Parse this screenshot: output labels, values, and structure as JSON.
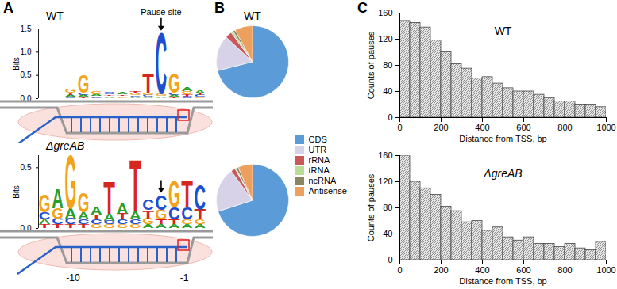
{
  "panel_labels": [
    "A",
    "B",
    "C"
  ],
  "chart_data": [
    {
      "type": "logo",
      "title": "WT",
      "annotation": "Pause site",
      "ylabel": "Bits",
      "xlim": [
        0.5,
        13.5
      ],
      "ylim": [
        0,
        1.5
      ],
      "yticks": [
        {
          "value": 0,
          "label": "0.0"
        },
        {
          "value": 0.5,
          "label": "0.5"
        },
        {
          "value": 1,
          "label": "1.0"
        },
        {
          "value": 1.5,
          "label": "1.5"
        }
      ],
      "tick_labels": "y",
      "pause_x": 10,
      "letter_colors": {
        "A": "#2a9d2a",
        "C": "#1f4fcf",
        "G": "#f2a31b",
        "T": "#d7261e"
      },
      "columns": [
        {
          "x": 1,
          "letters": []
        },
        {
          "x": 2,
          "letters": []
        },
        {
          "x": 3,
          "letters": [
            {
              "letter": "C",
              "bits": 0.03
            },
            {
              "letter": "A",
              "bits": 0.04
            },
            {
              "letter": "T",
              "bits": 0.05
            },
            {
              "letter": "G",
              "bits": 0.08
            }
          ]
        },
        {
          "x": 4,
          "letters": [
            {
              "letter": "T",
              "bits": 0.03
            },
            {
              "letter": "A",
              "bits": 0.04
            },
            {
              "letter": "C",
              "bits": 0.05
            },
            {
              "letter": "G",
              "bits": 0.38
            }
          ]
        },
        {
          "x": 5,
          "letters": [
            {
              "letter": "C",
              "bits": 0.02
            },
            {
              "letter": "T",
              "bits": 0.03
            },
            {
              "letter": "A",
              "bits": 0.04
            },
            {
              "letter": "G",
              "bits": 0.06
            }
          ]
        },
        {
          "x": 6,
          "letters": [
            {
              "letter": "A",
              "bits": 0.02
            },
            {
              "letter": "G",
              "bits": 0.03
            },
            {
              "letter": "T",
              "bits": 0.03
            },
            {
              "letter": "C",
              "bits": 0.04
            }
          ]
        },
        {
          "x": 7,
          "letters": [
            {
              "letter": "G",
              "bits": 0.02
            },
            {
              "letter": "C",
              "bits": 0.03
            },
            {
              "letter": "T",
              "bits": 0.03
            },
            {
              "letter": "A",
              "bits": 0.04
            }
          ]
        },
        {
          "x": 8,
          "letters": [
            {
              "letter": "A",
              "bits": 0.03
            },
            {
              "letter": "C",
              "bits": 0.03
            },
            {
              "letter": "G",
              "bits": 0.04
            },
            {
              "letter": "T",
              "bits": 0.05
            }
          ]
        },
        {
          "x": 9,
          "letters": [
            {
              "letter": "A",
              "bits": 0.03
            },
            {
              "letter": "C",
              "bits": 0.04
            },
            {
              "letter": "G",
              "bits": 0.05
            },
            {
              "letter": "T",
              "bits": 0.42
            }
          ]
        },
        {
          "x": 10,
          "letters": [
            {
              "letter": "A",
              "bits": 0.02
            },
            {
              "letter": "T",
              "bits": 0.03
            },
            {
              "letter": "G",
              "bits": 0.05
            },
            {
              "letter": "C",
              "bits": 1.3
            }
          ]
        },
        {
          "x": 11,
          "letters": [
            {
              "letter": "T",
              "bits": 0.03
            },
            {
              "letter": "A",
              "bits": 0.04
            },
            {
              "letter": "C",
              "bits": 0.05
            },
            {
              "letter": "G",
              "bits": 0.42
            }
          ]
        },
        {
          "x": 12,
          "letters": [
            {
              "letter": "C",
              "bits": 0.04
            },
            {
              "letter": "T",
              "bits": 0.05
            },
            {
              "letter": "G",
              "bits": 0.06
            },
            {
              "letter": "A",
              "bits": 0.08
            }
          ]
        },
        {
          "x": 13,
          "letters": [
            {
              "letter": "G",
              "bits": 0.03
            },
            {
              "letter": "C",
              "bits": 0.04
            },
            {
              "letter": "T",
              "bits": 0.04
            },
            {
              "letter": "A",
              "bits": 0.06
            }
          ]
        }
      ]
    },
    {
      "type": "logo",
      "title": "ΔgreAB",
      "ylabel": "Bits",
      "xlim": [
        0.5,
        13.5
      ],
      "ylim": [
        0,
        0.6
      ],
      "yticks": [
        {
          "value": 0,
          "label": "0.0"
        },
        {
          "value": 0.5,
          "label": "0.5"
        }
      ],
      "tick_labels": "y",
      "pause_x": 10,
      "diagram_labels": [
        "-10",
        "-1"
      ],
      "letter_colors": {
        "A": "#2a9d2a",
        "C": "#1f4fcf",
        "G": "#f2a31b",
        "T": "#d7261e"
      },
      "columns": [
        {
          "x": 1,
          "letters": [
            {
              "letter": "T",
              "bits": 0.03
            },
            {
              "letter": "A",
              "bits": 0.04
            },
            {
              "letter": "C",
              "bits": 0.06
            },
            {
              "letter": "G",
              "bits": 0.14
            }
          ]
        },
        {
          "x": 2,
          "letters": [
            {
              "letter": "T",
              "bits": 0.03
            },
            {
              "letter": "C",
              "bits": 0.05
            },
            {
              "letter": "G",
              "bits": 0.08
            },
            {
              "letter": "A",
              "bits": 0.16
            }
          ]
        },
        {
          "x": 3,
          "letters": [
            {
              "letter": "T",
              "bits": 0.03
            },
            {
              "letter": "C",
              "bits": 0.05
            },
            {
              "letter": "A",
              "bits": 0.08
            },
            {
              "letter": "G",
              "bits": 0.44
            }
          ]
        },
        {
          "x": 4,
          "letters": [
            {
              "letter": "T",
              "bits": 0.03
            },
            {
              "letter": "C",
              "bits": 0.04
            },
            {
              "letter": "A",
              "bits": 0.06
            },
            {
              "letter": "G",
              "bits": 0.16
            }
          ]
        },
        {
          "x": 5,
          "letters": [
            {
              "letter": "G",
              "bits": 0.03
            },
            {
              "letter": "C",
              "bits": 0.04
            },
            {
              "letter": "T",
              "bits": 0.04
            },
            {
              "letter": "A",
              "bits": 0.07
            }
          ]
        },
        {
          "x": 6,
          "letters": [
            {
              "letter": "G",
              "bits": 0.03
            },
            {
              "letter": "C",
              "bits": 0.03
            },
            {
              "letter": "A",
              "bits": 0.06
            },
            {
              "letter": "T",
              "bits": 0.26
            }
          ]
        },
        {
          "x": 7,
          "letters": [
            {
              "letter": "G",
              "bits": 0.03
            },
            {
              "letter": "C",
              "bits": 0.04
            },
            {
              "letter": "T",
              "bits": 0.05
            },
            {
              "letter": "A",
              "bits": 0.08
            }
          ]
        },
        {
          "x": 8,
          "letters": [
            {
              "letter": "G",
              "bits": 0.03
            },
            {
              "letter": "C",
              "bits": 0.04
            },
            {
              "letter": "A",
              "bits": 0.07
            },
            {
              "letter": "T",
              "bits": 0.42
            }
          ]
        },
        {
          "x": 9,
          "letters": [
            {
              "letter": "A",
              "bits": 0.03
            },
            {
              "letter": "G",
              "bits": 0.05
            },
            {
              "letter": "T",
              "bits": 0.07
            },
            {
              "letter": "C",
              "bits": 0.08
            }
          ]
        },
        {
          "x": 10,
          "letters": [
            {
              "letter": "A",
              "bits": 0.03
            },
            {
              "letter": "T",
              "bits": 0.04
            },
            {
              "letter": "G",
              "bits": 0.08
            },
            {
              "letter": "C",
              "bits": 0.12
            }
          ]
        },
        {
          "x": 11,
          "letters": [
            {
              "letter": "A",
              "bits": 0.03
            },
            {
              "letter": "T",
              "bits": 0.04
            },
            {
              "letter": "C",
              "bits": 0.1
            },
            {
              "letter": "G",
              "bits": 0.22
            }
          ]
        },
        {
          "x": 12,
          "letters": [
            {
              "letter": "A",
              "bits": 0.03
            },
            {
              "letter": "G",
              "bits": 0.04
            },
            {
              "letter": "C",
              "bits": 0.1
            },
            {
              "letter": "T",
              "bits": 0.22
            }
          ]
        },
        {
          "x": 13,
          "letters": [
            {
              "letter": "A",
              "bits": 0.03
            },
            {
              "letter": "G",
              "bits": 0.04
            },
            {
              "letter": "T",
              "bits": 0.08
            },
            {
              "letter": "C",
              "bits": 0.2
            }
          ]
        }
      ]
    },
    {
      "type": "pie",
      "title": "WT",
      "categories": [
        "CDS",
        "UTR",
        "rRNA",
        "tRNA",
        "ncRNA",
        "Antisense"
      ],
      "values": [
        71,
        16,
        3,
        1,
        1,
        8
      ],
      "colors": [
        "#5a9bd8",
        "#d8d2e8",
        "#c8585a",
        "#b9dc97",
        "#8a8662",
        "#eda05e"
      ],
      "legend": "right"
    },
    {
      "type": "pie",
      "categories": [
        "CDS",
        "UTR",
        "rRNA",
        "tRNA",
        "ncRNA",
        "Antisense"
      ],
      "values": [
        70,
        20,
        2,
        0.5,
        1,
        6.5
      ],
      "colors": [
        "#5a9bd8",
        "#d8d2e8",
        "#c8585a",
        "#b9dc97",
        "#8a8662",
        "#eda05e"
      ]
    },
    {
      "type": "histogram",
      "title": "WT",
      "xlabel": "Distance from TSS, bp",
      "ylabel": "Counts of pauses",
      "bins": [
        0,
        50,
        100,
        150,
        200,
        250,
        300,
        350,
        400,
        450,
        500,
        550,
        600,
        650,
        700,
        750,
        800,
        850,
        900,
        950,
        1000
      ],
      "values": [
        148,
        145,
        138,
        118,
        100,
        82,
        75,
        60,
        62,
        52,
        45,
        40,
        40,
        35,
        30,
        25,
        25,
        20,
        20,
        16
      ],
      "xlim": [
        0,
        1000
      ],
      "ylim": [
        0,
        160
      ],
      "xticks": [
        0,
        200,
        400,
        600,
        800,
        1000
      ],
      "yticks": [
        0,
        40,
        80,
        120,
        160
      ]
    },
    {
      "type": "histogram",
      "title": "ΔgreAB",
      "xlabel": "Distance from TSS, bp",
      "ylabel": "Counts of pauses",
      "bins": [
        0,
        50,
        100,
        150,
        200,
        250,
        300,
        350,
        400,
        450,
        500,
        550,
        600,
        650,
        700,
        750,
        800,
        850,
        900,
        950,
        1000
      ],
      "values": [
        160,
        120,
        110,
        100,
        82,
        75,
        58,
        60,
        45,
        50,
        35,
        30,
        35,
        25,
        25,
        20,
        25,
        18,
        15,
        28
      ],
      "xlim": [
        0,
        1000
      ],
      "ylim": [
        0,
        160
      ],
      "xticks": [
        0,
        200,
        400,
        600,
        800,
        1000
      ],
      "yticks": [
        0,
        40,
        80,
        120,
        160
      ]
    }
  ]
}
